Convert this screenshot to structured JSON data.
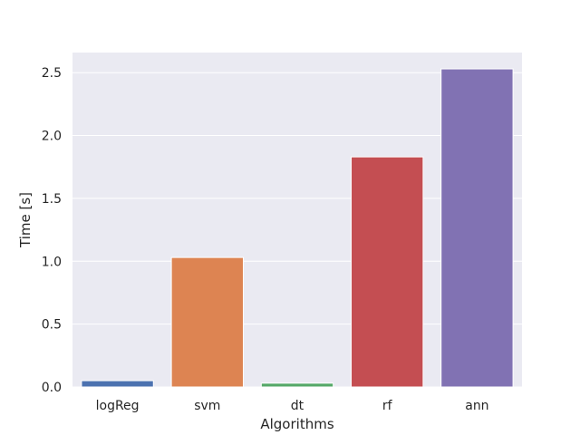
{
  "chart_data": {
    "type": "bar",
    "title": "",
    "xlabel": "Algorithms",
    "ylabel": "Time [s]",
    "categories": [
      "logReg",
      "svm",
      "dt",
      "rf",
      "ann"
    ],
    "values": [
      0.05,
      1.03,
      0.03,
      1.83,
      2.53
    ],
    "colors": [
      "#4c72b0",
      "#dd8452",
      "#55a868",
      "#c44e52",
      "#8172b3"
    ],
    "ylim": [
      0,
      2.66
    ],
    "yticks": [
      "0.0",
      "0.5",
      "1.0",
      "1.5",
      "2.0",
      "2.5"
    ],
    "grid": true,
    "background": "#eaeaf2",
    "legend": "none"
  }
}
